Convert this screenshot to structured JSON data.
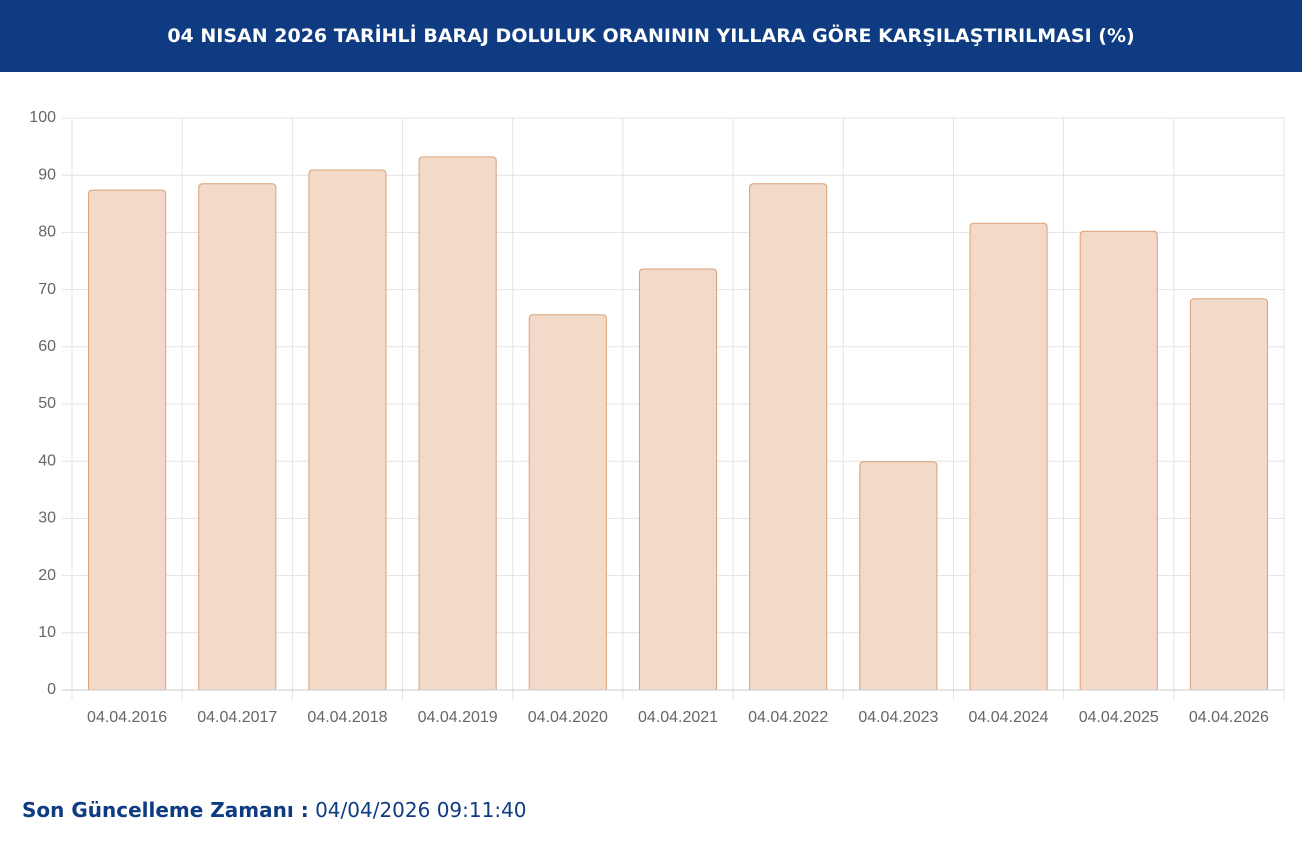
{
  "chart_data": {
    "type": "bar",
    "title": "04 NISAN 2026 TARİHLİ BARAJ DOLULUK ORANININ YILLARA GÖRE KARŞILAŞTIRILMASI (%)",
    "categories": [
      "04.04.2016",
      "04.04.2017",
      "04.04.2018",
      "04.04.2019",
      "04.04.2020",
      "04.04.2021",
      "04.04.2022",
      "04.04.2023",
      "04.04.2024",
      "04.04.2025",
      "04.04.2026"
    ],
    "values": [
      87.4,
      88.5,
      90.9,
      93.2,
      65.6,
      73.6,
      88.5,
      39.9,
      81.6,
      80.2,
      68.4
    ],
    "color": "#f2d9c8",
    "border_color": "#d9a27a",
    "ylim": [
      0,
      100
    ],
    "yticks": [
      0,
      10,
      20,
      30,
      40,
      50,
      60,
      70,
      80,
      90,
      100
    ],
    "grid": true
  },
  "footer": {
    "label": "Son Güncelleme Zamanı :",
    "value": "04/04/2026 09:11:40"
  }
}
